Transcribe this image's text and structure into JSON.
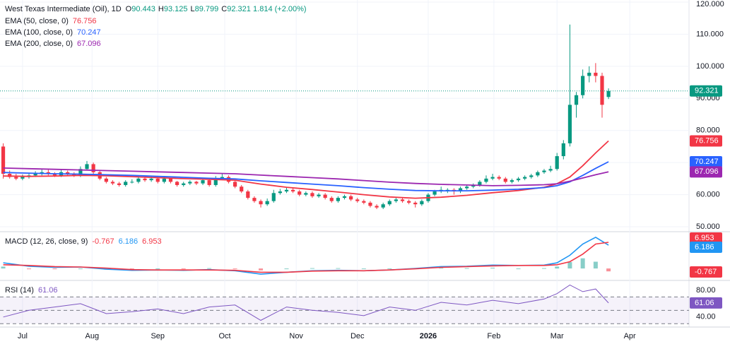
{
  "chart_data": {
    "type": "candlestick",
    "header": {
      "symbol": "West Texas Intermediate (Oil), 1D",
      "o": "O",
      "h": "H",
      "l": "L",
      "c": "C",
      "change": "1.814 (+2.00%)"
    },
    "up_color": "#089981",
    "down_color": "#f23645",
    "ohlc": [
      [
        75,
        76,
        65,
        66.5
      ],
      [
        66.5,
        67.5,
        65,
        65.5
      ],
      [
        65.5,
        66.5,
        64.5,
        65
      ],
      [
        65,
        66.3,
        64.5,
        65.5
      ],
      [
        65.5,
        66.8,
        65,
        66
      ],
      [
        66,
        67.3,
        65.5,
        66.5
      ],
      [
        66.5,
        67.8,
        66,
        67
      ],
      [
        67,
        67.8,
        66,
        66.5
      ],
      [
        66.5,
        67,
        65.5,
        66
      ],
      [
        66,
        67.8,
        65.5,
        67
      ],
      [
        67,
        67.5,
        66,
        66.5
      ],
      [
        66.5,
        67,
        65.5,
        66
      ],
      [
        66,
        68.8,
        65.5,
        68
      ],
      [
        68,
        70.5,
        67.5,
        69.5
      ],
      [
        69.5,
        70,
        66.5,
        67
      ],
      [
        67,
        67.5,
        64.5,
        65
      ],
      [
        65,
        65.5,
        63.5,
        64
      ],
      [
        64,
        64.5,
        63,
        63.5
      ],
      [
        63.5,
        64,
        62.5,
        63
      ],
      [
        63,
        64.5,
        62.5,
        64
      ],
      [
        64,
        64.8,
        63.5,
        64
      ],
      [
        64,
        65.8,
        63.5,
        65
      ],
      [
        65,
        65.5,
        64,
        64.5
      ],
      [
        64.5,
        65.8,
        64,
        65
      ],
      [
        65,
        65.5,
        63.5,
        64
      ],
      [
        64,
        65.8,
        63.5,
        65
      ],
      [
        65,
        65.3,
        63.5,
        64
      ],
      [
        64,
        64.3,
        62.5,
        63
      ],
      [
        63,
        64,
        62.5,
        63.5
      ],
      [
        63.5,
        64.5,
        63,
        64
      ],
      [
        64,
        64.3,
        63,
        63.5
      ],
      [
        63.5,
        65,
        63,
        64.5
      ],
      [
        64.5,
        65,
        62.5,
        63
      ],
      [
        63,
        65.8,
        62.5,
        65
      ],
      [
        65,
        66.5,
        64.5,
        65.5
      ],
      [
        65.5,
        66,
        63.5,
        64
      ],
      [
        64,
        64.5,
        62,
        62.5
      ],
      [
        62.5,
        63,
        60.5,
        61
      ],
      [
        61,
        61.5,
        58.5,
        59
      ],
      [
        59,
        59.5,
        57.5,
        58
      ],
      [
        58,
        58.5,
        56,
        57
      ],
      [
        57,
        58.8,
        56.5,
        58
      ],
      [
        58,
        61.5,
        57.5,
        60.5
      ],
      [
        60.5,
        61.8,
        60,
        61
      ],
      [
        61,
        62.3,
        60.5,
        61.5
      ],
      [
        61.5,
        62,
        60.5,
        61
      ],
      [
        61,
        61.5,
        59.5,
        60
      ],
      [
        60,
        61,
        59.5,
        60.5
      ],
      [
        60.5,
        61,
        59,
        59.5
      ],
      [
        59.5,
        60.5,
        59,
        60
      ],
      [
        60,
        60.5,
        58.5,
        59
      ],
      [
        59,
        59.5,
        57.5,
        58
      ],
      [
        58,
        59.5,
        57.5,
        59
      ],
      [
        59,
        60,
        58.5,
        59.5
      ],
      [
        59.5,
        60,
        58,
        58.5
      ],
      [
        58.5,
        59,
        57.5,
        58
      ],
      [
        58,
        58.5,
        57,
        57.5
      ],
      [
        57.5,
        58,
        56,
        56.5
      ],
      [
        56.5,
        57,
        55.5,
        56
      ],
      [
        56,
        57.5,
        55.5,
        57
      ],
      [
        57,
        58.5,
        56.5,
        58
      ],
      [
        58,
        59,
        57.5,
        58.5
      ],
      [
        58.5,
        59,
        57.5,
        58
      ],
      [
        58,
        58.5,
        57,
        57.5
      ],
      [
        57.5,
        58,
        56,
        57
      ],
      [
        57,
        58.5,
        56.5,
        58
      ],
      [
        58,
        60.5,
        57.5,
        60
      ],
      [
        60,
        61.5,
        59.5,
        61
      ],
      [
        61,
        62.5,
        60.5,
        61.5
      ],
      [
        61.5,
        62,
        60.5,
        61.5
      ],
      [
        61.5,
        62,
        60,
        61
      ],
      [
        61,
        62.5,
        60.5,
        62
      ],
      [
        62,
        63,
        61.5,
        62.5
      ],
      [
        62.5,
        63.5,
        62,
        63
      ],
      [
        63,
        64.5,
        62.5,
        64
      ],
      [
        64,
        66,
        63.5,
        65
      ],
      [
        65,
        66.5,
        64.5,
        65.5
      ],
      [
        65.5,
        66,
        64.5,
        65
      ],
      [
        65,
        65.5,
        63.5,
        64
      ],
      [
        64,
        65,
        63.5,
        64.5
      ],
      [
        64.5,
        65.5,
        64,
        65
      ],
      [
        65,
        66,
        64.5,
        65.5
      ],
      [
        65.5,
        66.5,
        65,
        66
      ],
      [
        66,
        67.5,
        65.5,
        67
      ],
      [
        67,
        68,
        66.5,
        67.5
      ],
      [
        67.5,
        69,
        67,
        68
      ],
      [
        68,
        73,
        67.5,
        72
      ],
      [
        72,
        77,
        71,
        76
      ],
      [
        76,
        113,
        75,
        88
      ],
      [
        88,
        92,
        84,
        91
      ],
      [
        91,
        99,
        90,
        97
      ],
      [
        97,
        100,
        95,
        98
      ],
      [
        98,
        101,
        95,
        97
      ],
      [
        97,
        98,
        84,
        88
      ],
      [
        90.443,
        93.125,
        89.799,
        92.321
      ]
    ],
    "xlim": [
      -0.5,
      106.5
    ],
    "xticks": [
      {
        "value": 3,
        "label": "Jul"
      },
      {
        "value": 13.8,
        "label": "Aug"
      },
      {
        "value": 24,
        "label": "Sep"
      },
      {
        "value": 34.4,
        "label": "Oct"
      },
      {
        "value": 45.5,
        "label": "Nov"
      },
      {
        "value": 55,
        "label": "Dec"
      },
      {
        "value": 66,
        "label": "2026"
      },
      {
        "value": 76.2,
        "label": "Feb"
      },
      {
        "value": 86,
        "label": "Mar"
      },
      {
        "value": 97.3,
        "label": "Apr"
      }
    ],
    "ylim": [
      48.9,
      120.66
    ],
    "yticks": [
      {
        "value": 50,
        "label": "50.000"
      },
      {
        "value": 60,
        "label": "60.000"
      },
      {
        "value": 70,
        "label": "70.000"
      },
      {
        "value": 80,
        "label": "80.000"
      },
      {
        "value": 90,
        "label": "90.000"
      },
      {
        "value": 100,
        "label": "100.000"
      },
      {
        "value": 110,
        "label": "110.000"
      },
      {
        "value": 120,
        "label": "120.000"
      }
    ],
    "grid": true,
    "x": [
      0,
      4,
      8,
      12,
      16,
      20,
      24,
      28,
      32,
      36,
      40,
      44,
      48,
      52,
      56,
      60,
      64,
      68,
      72,
      76,
      80,
      84,
      86,
      88,
      90,
      92,
      94
    ],
    "series": [
      {
        "name": "EMA (50, close, 0)",
        "color": "#f23645",
        "values": [
          65.8,
          65.7,
          65.8,
          66,
          65.9,
          65.6,
          65.3,
          65,
          64.8,
          64.5,
          63.3,
          62.3,
          61.6,
          60.8,
          60,
          59.3,
          58.9,
          59.2,
          59.8,
          60.6,
          61.3,
          62.3,
          63.4,
          65.5,
          69,
          73,
          76.756
        ]
      },
      {
        "name": "EMA (100, close, 0)",
        "color": "#2962ff",
        "values": [
          66.9,
          66.7,
          66.5,
          66.4,
          66.2,
          66,
          65.7,
          65.4,
          65.1,
          64.9,
          64.3,
          63.8,
          63.3,
          62.8,
          62.2,
          61.7,
          61.3,
          61.2,
          61.2,
          61.4,
          61.7,
          62.2,
          62.8,
          64,
          66,
          68.2,
          70.247
        ]
      },
      {
        "name": "EMA (200, close, 0)",
        "color": "#9c27b0",
        "values": [
          68.3,
          68.1,
          67.9,
          67.7,
          67.5,
          67.3,
          67.1,
          66.9,
          66.7,
          66.5,
          66.1,
          65.7,
          65.3,
          64.9,
          64.4,
          63.9,
          63.5,
          63.2,
          63,
          62.8,
          62.9,
          63.1,
          63.4,
          64.2,
          65.2,
          66.2,
          67.096
        ]
      }
    ],
    "macd": {
      "name": "MACD (12, 26, close, 9)",
      "ylim": [
        -2.8,
        9.4
      ],
      "histogram": {
        "color": "#26a69a",
        "negative_color": "#f23645",
        "values": [
          0.5,
          -0.2,
          -0.2,
          0,
          -0.3,
          -0.2,
          0,
          -0.1,
          0.1,
          -0.1,
          -0.5,
          0,
          0.1,
          0.1,
          0,
          0,
          0.1,
          0.2,
          0.1,
          0.2,
          0,
          0.1,
          0.5,
          1.7,
          2.7,
          1.8,
          -0.767
        ]
      },
      "series": [
        {
          "color": "#2196f3",
          "values": [
            1.5,
            0.6,
            0.3,
            0.4,
            -0.2,
            -0.5,
            -0.4,
            -0.5,
            -0.3,
            -0.6,
            -1.5,
            -1,
            -0.6,
            -0.5,
            -0.6,
            -0.4,
            0,
            0.5,
            0.6,
            0.9,
            0.8,
            0.9,
            1.5,
            3.5,
            6.5,
            8.3,
            6.186
          ]
        },
        {
          "color": "#f23645",
          "values": [
            1,
            0.8,
            0.5,
            0.4,
            0.1,
            -0.3,
            -0.4,
            -0.4,
            -0.4,
            -0.5,
            -1,
            -1,
            -0.7,
            -0.6,
            -0.6,
            -0.4,
            -0.1,
            0.3,
            0.5,
            0.7,
            0.8,
            0.8,
            1,
            1.8,
            3.8,
            6.5,
            6.953
          ]
        }
      ]
    },
    "rsi": {
      "name": "RSI (14)",
      "color": "#7e57c2",
      "ylim": [
        26,
        91.6
      ],
      "yticks": [
        {
          "value": 40,
          "label": "40.00"
        },
        {
          "value": 80,
          "label": "80.00"
        }
      ],
      "bands": [
        30,
        50,
        70
      ],
      "values": [
        40,
        50,
        55,
        60,
        45,
        48,
        52,
        45,
        55,
        58,
        35,
        55,
        50,
        47,
        42,
        55,
        50,
        62,
        58,
        65,
        60,
        67,
        75,
        88,
        78,
        82,
        61.06
      ]
    }
  }
}
